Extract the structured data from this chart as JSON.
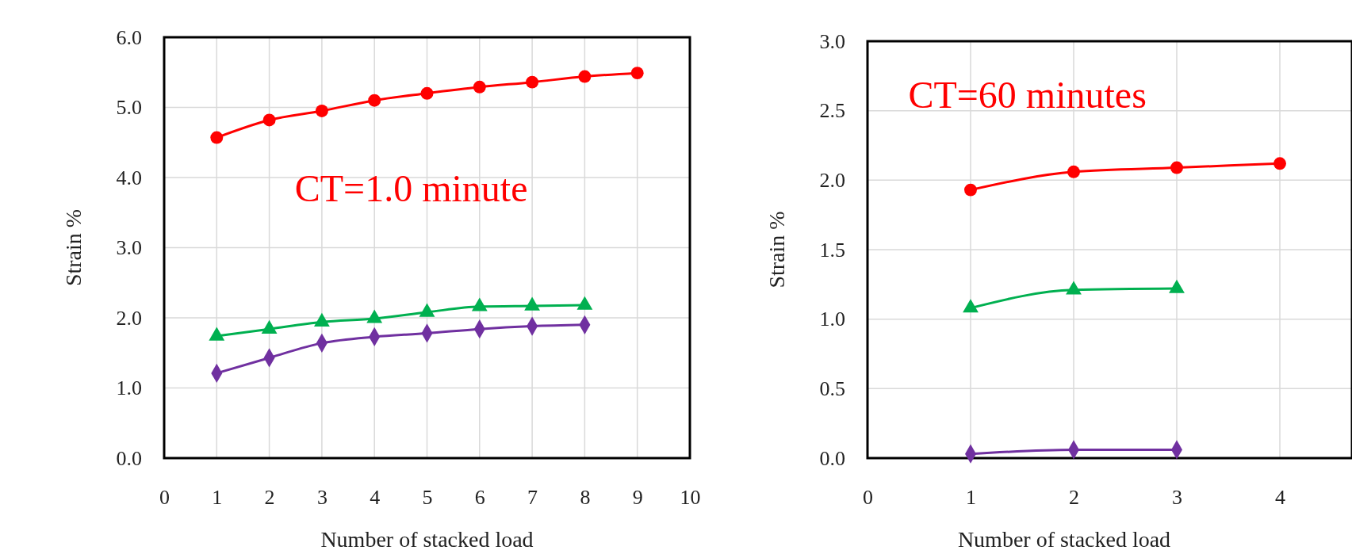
{
  "chart_data": [
    {
      "type": "line",
      "xlabel": "Number of stacked load",
      "ylabel": "Strain %",
      "annotations": [
        "CT=1.0 minute"
      ],
      "xlim": [
        0,
        10
      ],
      "xticks": [
        0,
        1,
        2,
        3,
        4,
        5,
        6,
        7,
        8,
        9,
        10
      ],
      "ylim": [
        0,
        6
      ],
      "yticks": [
        {
          "value": 0,
          "label": "0.0"
        },
        {
          "value": 1,
          "label": "1.0"
        },
        {
          "value": 2,
          "label": "2.0"
        },
        {
          "value": 3,
          "label": "3.0"
        },
        {
          "value": 4,
          "label": "4.0"
        },
        {
          "value": 5,
          "label": "5.0"
        },
        {
          "value": 6,
          "label": "6.0"
        }
      ],
      "grid": true,
      "series": [
        {
          "color": "#ff0000",
          "marker": "circle",
          "x": [
            1,
            2,
            3,
            4,
            5,
            6,
            7,
            8,
            9
          ],
          "values": [
            4.57,
            4.82,
            4.95,
            5.1,
            5.2,
            5.29,
            5.36,
            5.44,
            5.49
          ]
        },
        {
          "color": "#00b050",
          "marker": "triangle",
          "x": [
            1,
            2,
            3,
            4,
            5,
            6,
            7,
            8
          ],
          "values": [
            1.74,
            1.84,
            1.94,
            1.99,
            2.08,
            2.16,
            2.17,
            2.18
          ]
        },
        {
          "color": "#7030a0",
          "marker": "diamond",
          "x": [
            1,
            2,
            3,
            4,
            5,
            6,
            7,
            8
          ],
          "values": [
            1.21,
            1.43,
            1.64,
            1.73,
            1.78,
            1.84,
            1.88,
            1.9
          ]
        }
      ]
    },
    {
      "type": "line",
      "xlabel": "Number of stacked load",
      "ylabel": "Strain %",
      "annotations": [
        "CT=60 minutes"
      ],
      "xlim": [
        0,
        4.7
      ],
      "xticks": [
        0,
        1,
        2,
        3,
        4
      ],
      "ylim": [
        0,
        3
      ],
      "yticks": [
        {
          "value": 0,
          "label": "0.0"
        },
        {
          "value": 0.5,
          "label": "0.5"
        },
        {
          "value": 1,
          "label": "1.0"
        },
        {
          "value": 1.5,
          "label": "1.5"
        },
        {
          "value": 2,
          "label": "2.0"
        },
        {
          "value": 2.5,
          "label": "2.5"
        },
        {
          "value": 3,
          "label": "3.0"
        }
      ],
      "grid": true,
      "series": [
        {
          "color": "#ff0000",
          "marker": "circle",
          "x": [
            1,
            2,
            3,
            4
          ],
          "values": [
            1.93,
            2.06,
            2.09,
            2.12
          ]
        },
        {
          "color": "#00b050",
          "marker": "triangle",
          "x": [
            1,
            2,
            3
          ],
          "values": [
            1.08,
            1.21,
            1.22
          ]
        },
        {
          "color": "#7030a0",
          "marker": "diamond",
          "x": [
            1,
            2,
            3
          ],
          "values": [
            0.03,
            0.06,
            0.06
          ]
        }
      ]
    }
  ]
}
